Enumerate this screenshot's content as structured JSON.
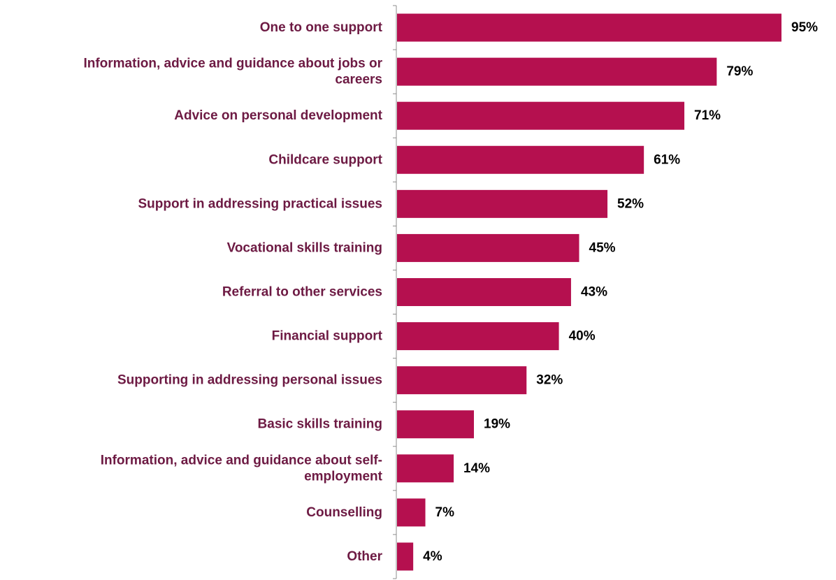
{
  "chart_data": {
    "type": "bar",
    "orientation": "horizontal",
    "categories": [
      "One to one support ",
      "Information, advice and guidance about jobs or careers",
      "Advice on personal development",
      "Childcare support ",
      "Support in addressing practical issues",
      "Vocational skills training ",
      "Referral to other services ",
      "Financial support",
      "Supporting in addressing personal issues",
      "Basic skills training ",
      "Information, advice and guidance about self-employment",
      "Counselling",
      "Other"
    ],
    "category_lines": [
      [
        "One to one support "
      ],
      [
        "Information, advice and guidance about jobs or",
        "careers"
      ],
      [
        "Advice on personal development"
      ],
      [
        "Childcare support "
      ],
      [
        "Support in addressing practical issues"
      ],
      [
        "Vocational skills training "
      ],
      [
        "Referral to other services "
      ],
      [
        "Financial support"
      ],
      [
        "Supporting in addressing personal issues"
      ],
      [
        "Basic skills training "
      ],
      [
        "Information, advice and guidance about self-",
        "employment"
      ],
      [
        "Counselling"
      ],
      [
        "Other"
      ]
    ],
    "values": [
      95,
      79,
      71,
      61,
      52,
      45,
      43,
      40,
      32,
      19,
      14,
      7,
      4
    ],
    "data_labels": [
      "95%",
      "79%",
      "71%",
      "61%",
      "52%",
      "45%",
      "43%",
      "40%",
      "32%",
      "19%",
      "14%",
      "7%",
      "4%"
    ],
    "unit": "%",
    "xlim": [
      0,
      95
    ],
    "title": "",
    "xlabel": "",
    "ylabel": "",
    "grid": false,
    "legend": "none",
    "bar_color": "#b5104f",
    "label_color": "#6d1a43",
    "value_label_color": "#000000",
    "axis_color": "#8c8c8c"
  }
}
